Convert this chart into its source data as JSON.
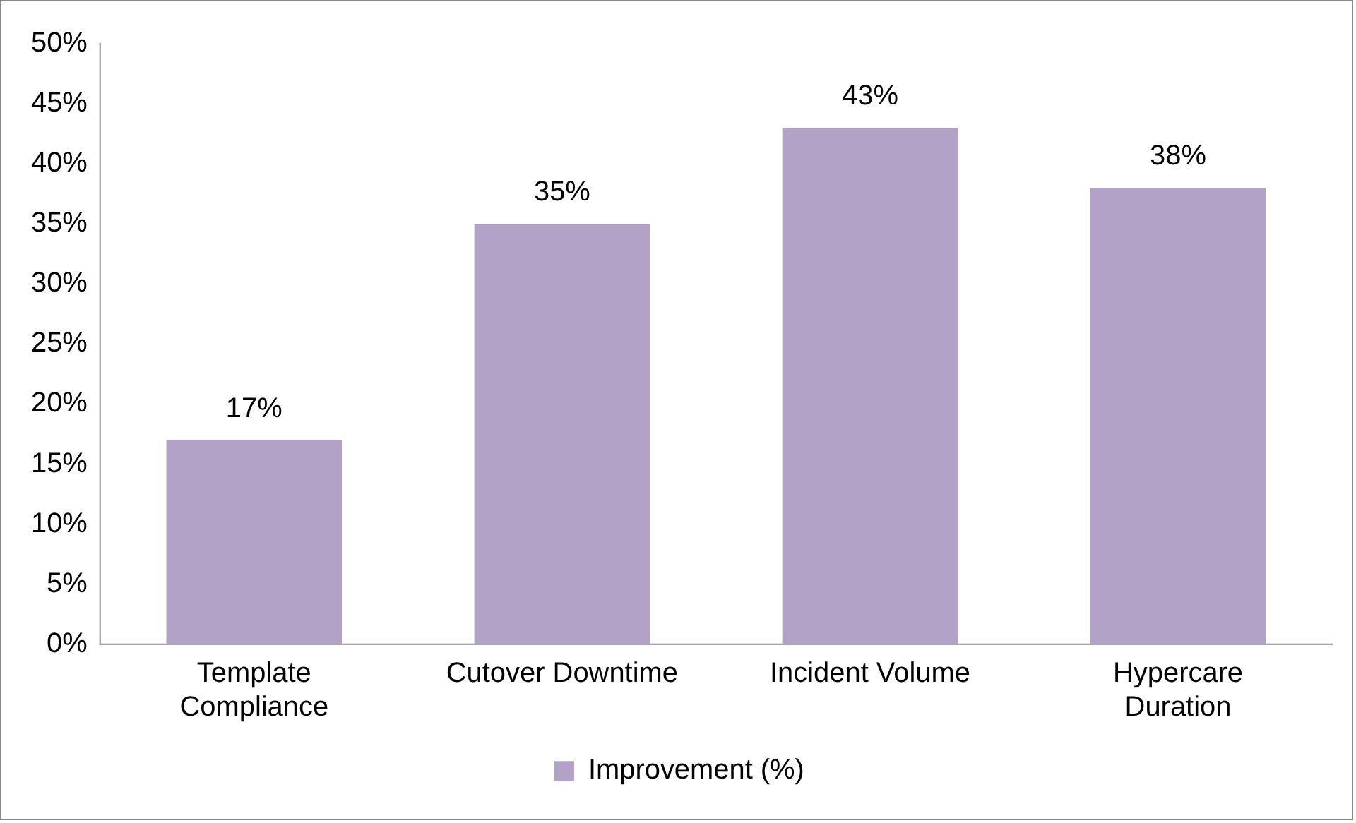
{
  "chart_data": {
    "type": "bar",
    "categories": [
      "Template Compliance",
      "Cutover Downtime",
      "Incident Volume",
      "Hypercare Duration"
    ],
    "series": [
      {
        "name": "Improvement (%)",
        "color": "#b3a2c7",
        "values": [
          17,
          35,
          43,
          38
        ],
        "value_labels": [
          "17%",
          "35%",
          "43%",
          "38%"
        ]
      }
    ],
    "ylim": [
      0,
      50
    ],
    "yticks": [
      {
        "value": 0,
        "label": "0%"
      },
      {
        "value": 5,
        "label": "5%"
      },
      {
        "value": 10,
        "label": "10%"
      },
      {
        "value": 15,
        "label": "15%"
      },
      {
        "value": 20,
        "label": "20%"
      },
      {
        "value": 25,
        "label": "25%"
      },
      {
        "value": 30,
        "label": "30%"
      },
      {
        "value": 35,
        "label": "35%"
      },
      {
        "value": 40,
        "label": "40%"
      },
      {
        "value": 45,
        "label": "45%"
      },
      {
        "value": 50,
        "label": "50%"
      }
    ],
    "grid": false,
    "legend": "bottom"
  }
}
